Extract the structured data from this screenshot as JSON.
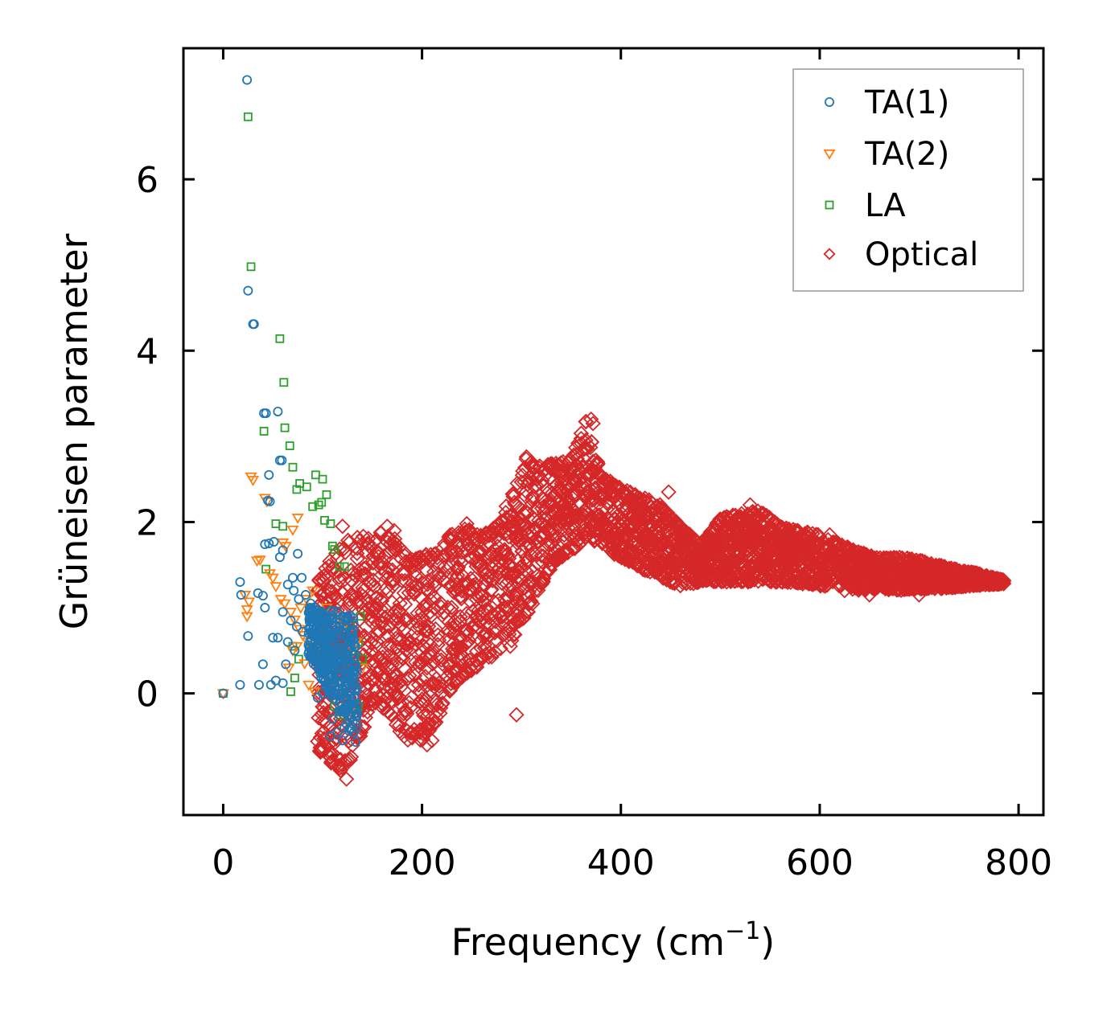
{
  "chart_data": {
    "type": "scatter",
    "title": "",
    "xlabel": "Frequency (cm",
    "xlabel_sup": "−1",
    "xlabel_tail": ")",
    "ylabel": "Grüneisen parameter",
    "xlim": [
      -40,
      825
    ],
    "ylim": [
      -1.42,
      7.53
    ],
    "xticks": [
      0,
      200,
      400,
      600,
      800
    ],
    "yticks": [
      0,
      2,
      4,
      6
    ],
    "xtick_labels": [
      "0",
      "200",
      "400",
      "600",
      "800"
    ],
    "ytick_labels": [
      "0",
      "2",
      "4",
      "6"
    ],
    "grid": false,
    "legend_position": "top-right",
    "series": [
      {
        "name": "TA(1)",
        "marker": "circle",
        "color": "#1f77b4",
        "points": [
          [
            0,
            0
          ],
          [
            17,
            0.1
          ],
          [
            36,
            0.1
          ],
          [
            60,
            0.12
          ],
          [
            48,
            0.1
          ],
          [
            53,
            0.15
          ],
          [
            25,
            0.67
          ],
          [
            40,
            0.34
          ],
          [
            63,
            0.34
          ],
          [
            17,
            1.3
          ],
          [
            18,
            1.15
          ],
          [
            35,
            1.17
          ],
          [
            40,
            1.14
          ],
          [
            42,
            1.0
          ],
          [
            24,
            7.16
          ],
          [
            25,
            4.7
          ],
          [
            30,
            4.31
          ],
          [
            31,
            4.31
          ],
          [
            41,
            3.27
          ],
          [
            43,
            3.27
          ],
          [
            55,
            3.29
          ],
          [
            57,
            2.72
          ],
          [
            59,
            2.72
          ],
          [
            46,
            2.55
          ],
          [
            45,
            2.25
          ],
          [
            47,
            2.24
          ],
          [
            42,
            1.74
          ],
          [
            46,
            1.75
          ],
          [
            51,
            1.77
          ],
          [
            60,
            1.67
          ],
          [
            57,
            1.59
          ],
          [
            70,
            1.35
          ],
          [
            75,
            1.63
          ],
          [
            79,
            1.35
          ],
          [
            65,
            1.27
          ],
          [
            71,
            1.2
          ],
          [
            76,
            1.1
          ],
          [
            83,
            1.15
          ],
          [
            88,
            1.05
          ],
          [
            95,
            0.9
          ],
          [
            100,
            0.85
          ],
          [
            110,
            0.8
          ],
          [
            120,
            0.72
          ],
          [
            128,
            0.65
          ],
          [
            133,
            0.55
          ],
          [
            105,
            0.6
          ],
          [
            112,
            0.5
          ],
          [
            118,
            0.4
          ],
          [
            125,
            0.3
          ],
          [
            130,
            0.2
          ],
          [
            60,
            0.95
          ],
          [
            68,
            0.85
          ],
          [
            74,
            0.78
          ],
          [
            80,
            0.72
          ],
          [
            86,
            0.7
          ],
          [
            92,
            0.66
          ],
          [
            98,
            0.58
          ],
          [
            104,
            0.44
          ],
          [
            109,
            0.36
          ],
          [
            115,
            0.2
          ],
          [
            120,
            0.05
          ],
          [
            124,
            -0.1
          ],
          [
            126,
            -0.25
          ],
          [
            122,
            -0.4
          ],
          [
            115,
            -0.45
          ],
          [
            108,
            -0.5
          ],
          [
            120,
            -0.55
          ],
          [
            110,
            -0.3
          ],
          [
            100,
            0.0
          ],
          [
            95,
            -0.05
          ],
          [
            50,
            0.65
          ],
          [
            55,
            0.65
          ],
          [
            65,
            0.6
          ],
          [
            72,
            0.5
          ]
        ]
      },
      {
        "name": "TA(2)",
        "marker": "triangle-down",
        "color": "#ff7f0e",
        "points": [
          [
            0,
            0
          ],
          [
            28,
            2.53
          ],
          [
            30,
            2.49
          ],
          [
            34,
            1.55
          ],
          [
            37,
            1.56
          ],
          [
            42,
            2.28
          ],
          [
            44,
            2.24
          ],
          [
            60,
            1.76
          ],
          [
            63,
            1.72
          ],
          [
            70,
            1.91
          ],
          [
            75,
            2.05
          ],
          [
            22,
            1.15
          ],
          [
            26,
            1.07
          ],
          [
            24,
            0.98
          ],
          [
            24,
            0.9
          ],
          [
            47,
            1.4
          ],
          [
            50,
            1.35
          ],
          [
            53,
            1.25
          ],
          [
            58,
            1.1
          ],
          [
            62,
            1.05
          ],
          [
            68,
            0.95
          ],
          [
            72,
            0.86
          ],
          [
            77,
            0.75
          ],
          [
            80,
            0.68
          ],
          [
            85,
            0.6
          ],
          [
            88,
            0.55
          ],
          [
            92,
            0.45
          ],
          [
            96,
            0.4
          ],
          [
            100,
            0.32
          ],
          [
            104,
            0.24
          ],
          [
            108,
            0.16
          ],
          [
            112,
            0.1
          ],
          [
            116,
            0.05
          ],
          [
            120,
            0.0
          ],
          [
            124,
            -0.1
          ],
          [
            128,
            -0.2
          ],
          [
            66,
            0.3
          ],
          [
            70,
            0.5
          ],
          [
            74,
            0.55
          ],
          [
            82,
            0.35
          ],
          [
            86,
            0.1
          ],
          [
            92,
            0.02
          ],
          [
            98,
            0.8
          ],
          [
            104,
            1.0
          ],
          [
            110,
            0.9
          ],
          [
            116,
            0.85
          ],
          [
            122,
            0.8
          ],
          [
            128,
            0.7
          ],
          [
            134,
            0.6
          ],
          [
            140,
            0.3
          ],
          [
            78,
            1.0
          ],
          [
            84,
            1.1
          ],
          [
            90,
            1.2
          ]
        ]
      },
      {
        "name": "LA",
        "marker": "square",
        "color": "#2ca02c",
        "points": [
          [
            0,
            0
          ],
          [
            25,
            6.73
          ],
          [
            28,
            4.98
          ],
          [
            57,
            4.14
          ],
          [
            61,
            3.63
          ],
          [
            62,
            3.1
          ],
          [
            41,
            3.06
          ],
          [
            67,
            2.89
          ],
          [
            70,
            2.64
          ],
          [
            74,
            2.38
          ],
          [
            77,
            2.45
          ],
          [
            84,
            2.41
          ],
          [
            93,
            2.55
          ],
          [
            100,
            2.5
          ],
          [
            104,
            2.32
          ],
          [
            99,
            2.23
          ],
          [
            96,
            2.2
          ],
          [
            90,
            2.18
          ],
          [
            102,
            2.02
          ],
          [
            108,
            1.98
          ],
          [
            110,
            1.72
          ],
          [
            112,
            1.68
          ],
          [
            53,
            1.98
          ],
          [
            60,
            1.95
          ],
          [
            43,
            1.45
          ],
          [
            117,
            1.48
          ],
          [
            122,
            1.48
          ],
          [
            70,
            0.55
          ],
          [
            76,
            0.4
          ],
          [
            72,
            0.18
          ],
          [
            68,
            0.02
          ],
          [
            110,
            0.4
          ],
          [
            115,
            0.2
          ],
          [
            120,
            0.0
          ],
          [
            125,
            -0.1
          ],
          [
            130,
            -0.2
          ],
          [
            136,
            -0.15
          ],
          [
            112,
            -0.15
          ],
          [
            118,
            -0.25
          ],
          [
            138,
            0.9
          ],
          [
            136,
            0.6
          ],
          [
            140,
            0.4
          ],
          [
            132,
            0.5
          ],
          [
            128,
            0.8
          ],
          [
            95,
            0.9
          ],
          [
            100,
            0.7
          ],
          [
            105,
            0.6
          ]
        ]
      },
      {
        "name": "Optical",
        "marker": "diamond",
        "color": "#d62728",
        "band": {
          "x": [
            95,
            110,
            125,
            140,
            155,
            170,
            185,
            200,
            215,
            230,
            245,
            260,
            275,
            290,
            305,
            320,
            335,
            350,
            365,
            380,
            400,
            420,
            440,
            460,
            480,
            500,
            520,
            540,
            560,
            580,
            600,
            620,
            640,
            660,
            680,
            700,
            720,
            740,
            760,
            785
          ],
          "low": [
            -0.65,
            -0.85,
            -0.9,
            -0.45,
            -0.1,
            -0.35,
            -0.55,
            -0.55,
            -0.35,
            0.05,
            0.2,
            0.35,
            0.45,
            0.55,
            0.9,
            1.25,
            1.55,
            1.65,
            1.8,
            1.75,
            1.55,
            1.45,
            1.35,
            1.25,
            1.3,
            1.3,
            1.3,
            1.3,
            1.3,
            1.28,
            1.25,
            1.25,
            1.2,
            1.22,
            1.2,
            1.22,
            1.22,
            1.24,
            1.26,
            1.28
          ],
          "high": [
            1.3,
            1.6,
            1.8,
            1.85,
            1.9,
            1.85,
            1.6,
            1.6,
            1.7,
            1.9,
            1.95,
            1.85,
            1.95,
            2.35,
            2.75,
            2.65,
            2.7,
            2.75,
            3.2,
            2.55,
            2.4,
            2.3,
            2.2,
            1.95,
            1.75,
            2.05,
            2.1,
            2.15,
            1.95,
            1.9,
            1.85,
            1.75,
            1.65,
            1.58,
            1.6,
            1.56,
            1.5,
            1.44,
            1.4,
            1.32
          ]
        },
        "outliers": [
          [
            120,
            1.95
          ],
          [
            135,
            1.82
          ],
          [
            165,
            1.95
          ],
          [
            172,
            1.9
          ],
          [
            182,
            -0.5
          ],
          [
            205,
            -0.6
          ],
          [
            210,
            -0.55
          ],
          [
            245,
            1.98
          ],
          [
            295,
            -0.25
          ],
          [
            305,
            2.76
          ],
          [
            310,
            2.7
          ],
          [
            370,
            3.2
          ],
          [
            372,
            3.15
          ],
          [
            448,
            2.35
          ],
          [
            530,
            2.2
          ],
          [
            610,
            1.85
          ],
          [
            625,
            1.2
          ],
          [
            650,
            1.15
          ],
          [
            700,
            1.15
          ],
          [
            785,
            1.28
          ],
          [
            110,
            -0.7
          ],
          [
            124,
            -1.0
          ],
          [
            118,
            -0.9
          ]
        ]
      }
    ]
  }
}
